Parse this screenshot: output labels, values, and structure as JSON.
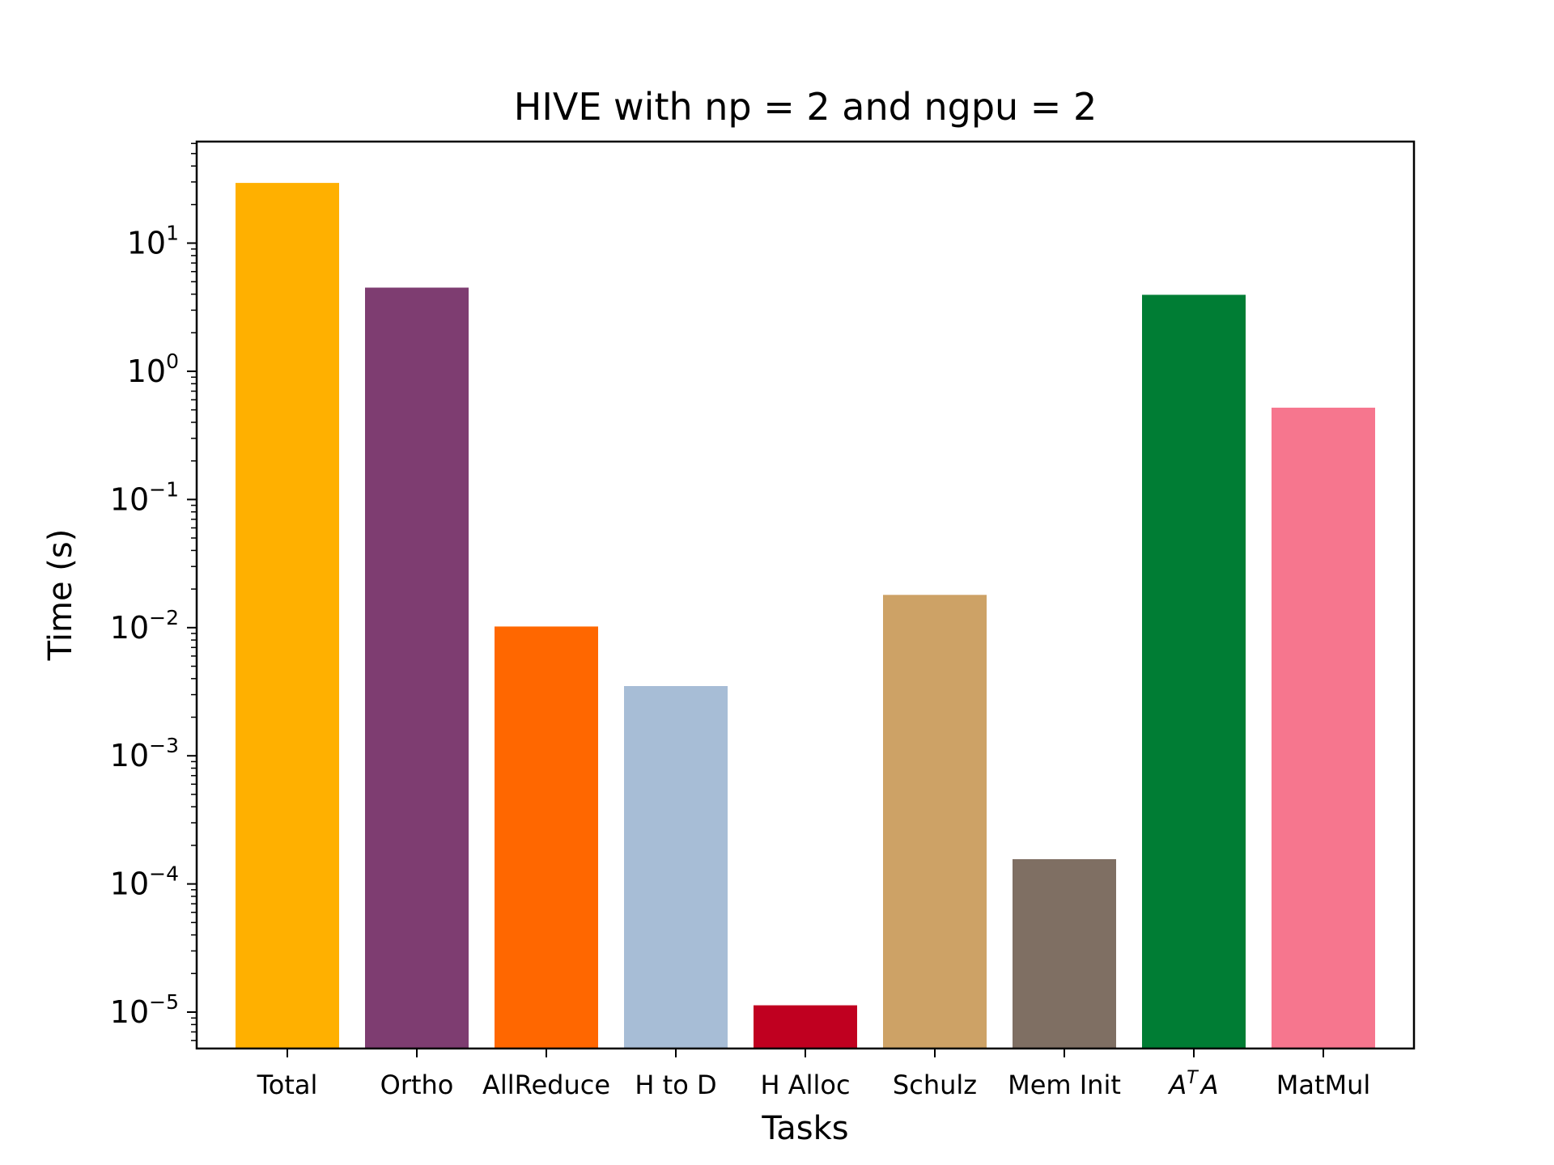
{
  "chart_data": {
    "type": "bar",
    "title": "HIVE with np = 2 and ngpu = 2",
    "xlabel": "Tasks",
    "ylabel": "Time (s)",
    "yscale": "log",
    "ylim": [
      5.2e-06,
      62
    ],
    "yticks": [
      {
        "value": 1e-05,
        "base": "10",
        "exp": "−5"
      },
      {
        "value": 0.0001,
        "base": "10",
        "exp": "−4"
      },
      {
        "value": 0.001,
        "base": "10",
        "exp": "−3"
      },
      {
        "value": 0.01,
        "base": "10",
        "exp": "−2"
      },
      {
        "value": 0.1,
        "base": "10",
        "exp": "−1"
      },
      {
        "value": 1,
        "base": "10",
        "exp": "0"
      },
      {
        "value": 10,
        "base": "10",
        "exp": "1"
      }
    ],
    "grid": false,
    "bars": [
      {
        "category": "Total",
        "value": 29.5,
        "color": "#FFB000"
      },
      {
        "category": "Ortho",
        "value": 4.5,
        "color": "#7E3D71"
      },
      {
        "category": "AllReduce",
        "value": 0.0102,
        "color": "#FF6700"
      },
      {
        "category": "H to D",
        "value": 0.0035,
        "color": "#A7BDD6"
      },
      {
        "category": "H Alloc",
        "value": 1.13e-05,
        "color": "#C00020"
      },
      {
        "category": "Schulz",
        "value": 0.018,
        "color": "#CDA266"
      },
      {
        "category": "Mem Init",
        "value": 0.000156,
        "color": "#7F6F63"
      },
      {
        "category": "A^T A",
        "value": 3.95,
        "color": "#007D34"
      },
      {
        "category": "MatMul",
        "value": 0.52,
        "color": "#F6768E"
      }
    ]
  }
}
